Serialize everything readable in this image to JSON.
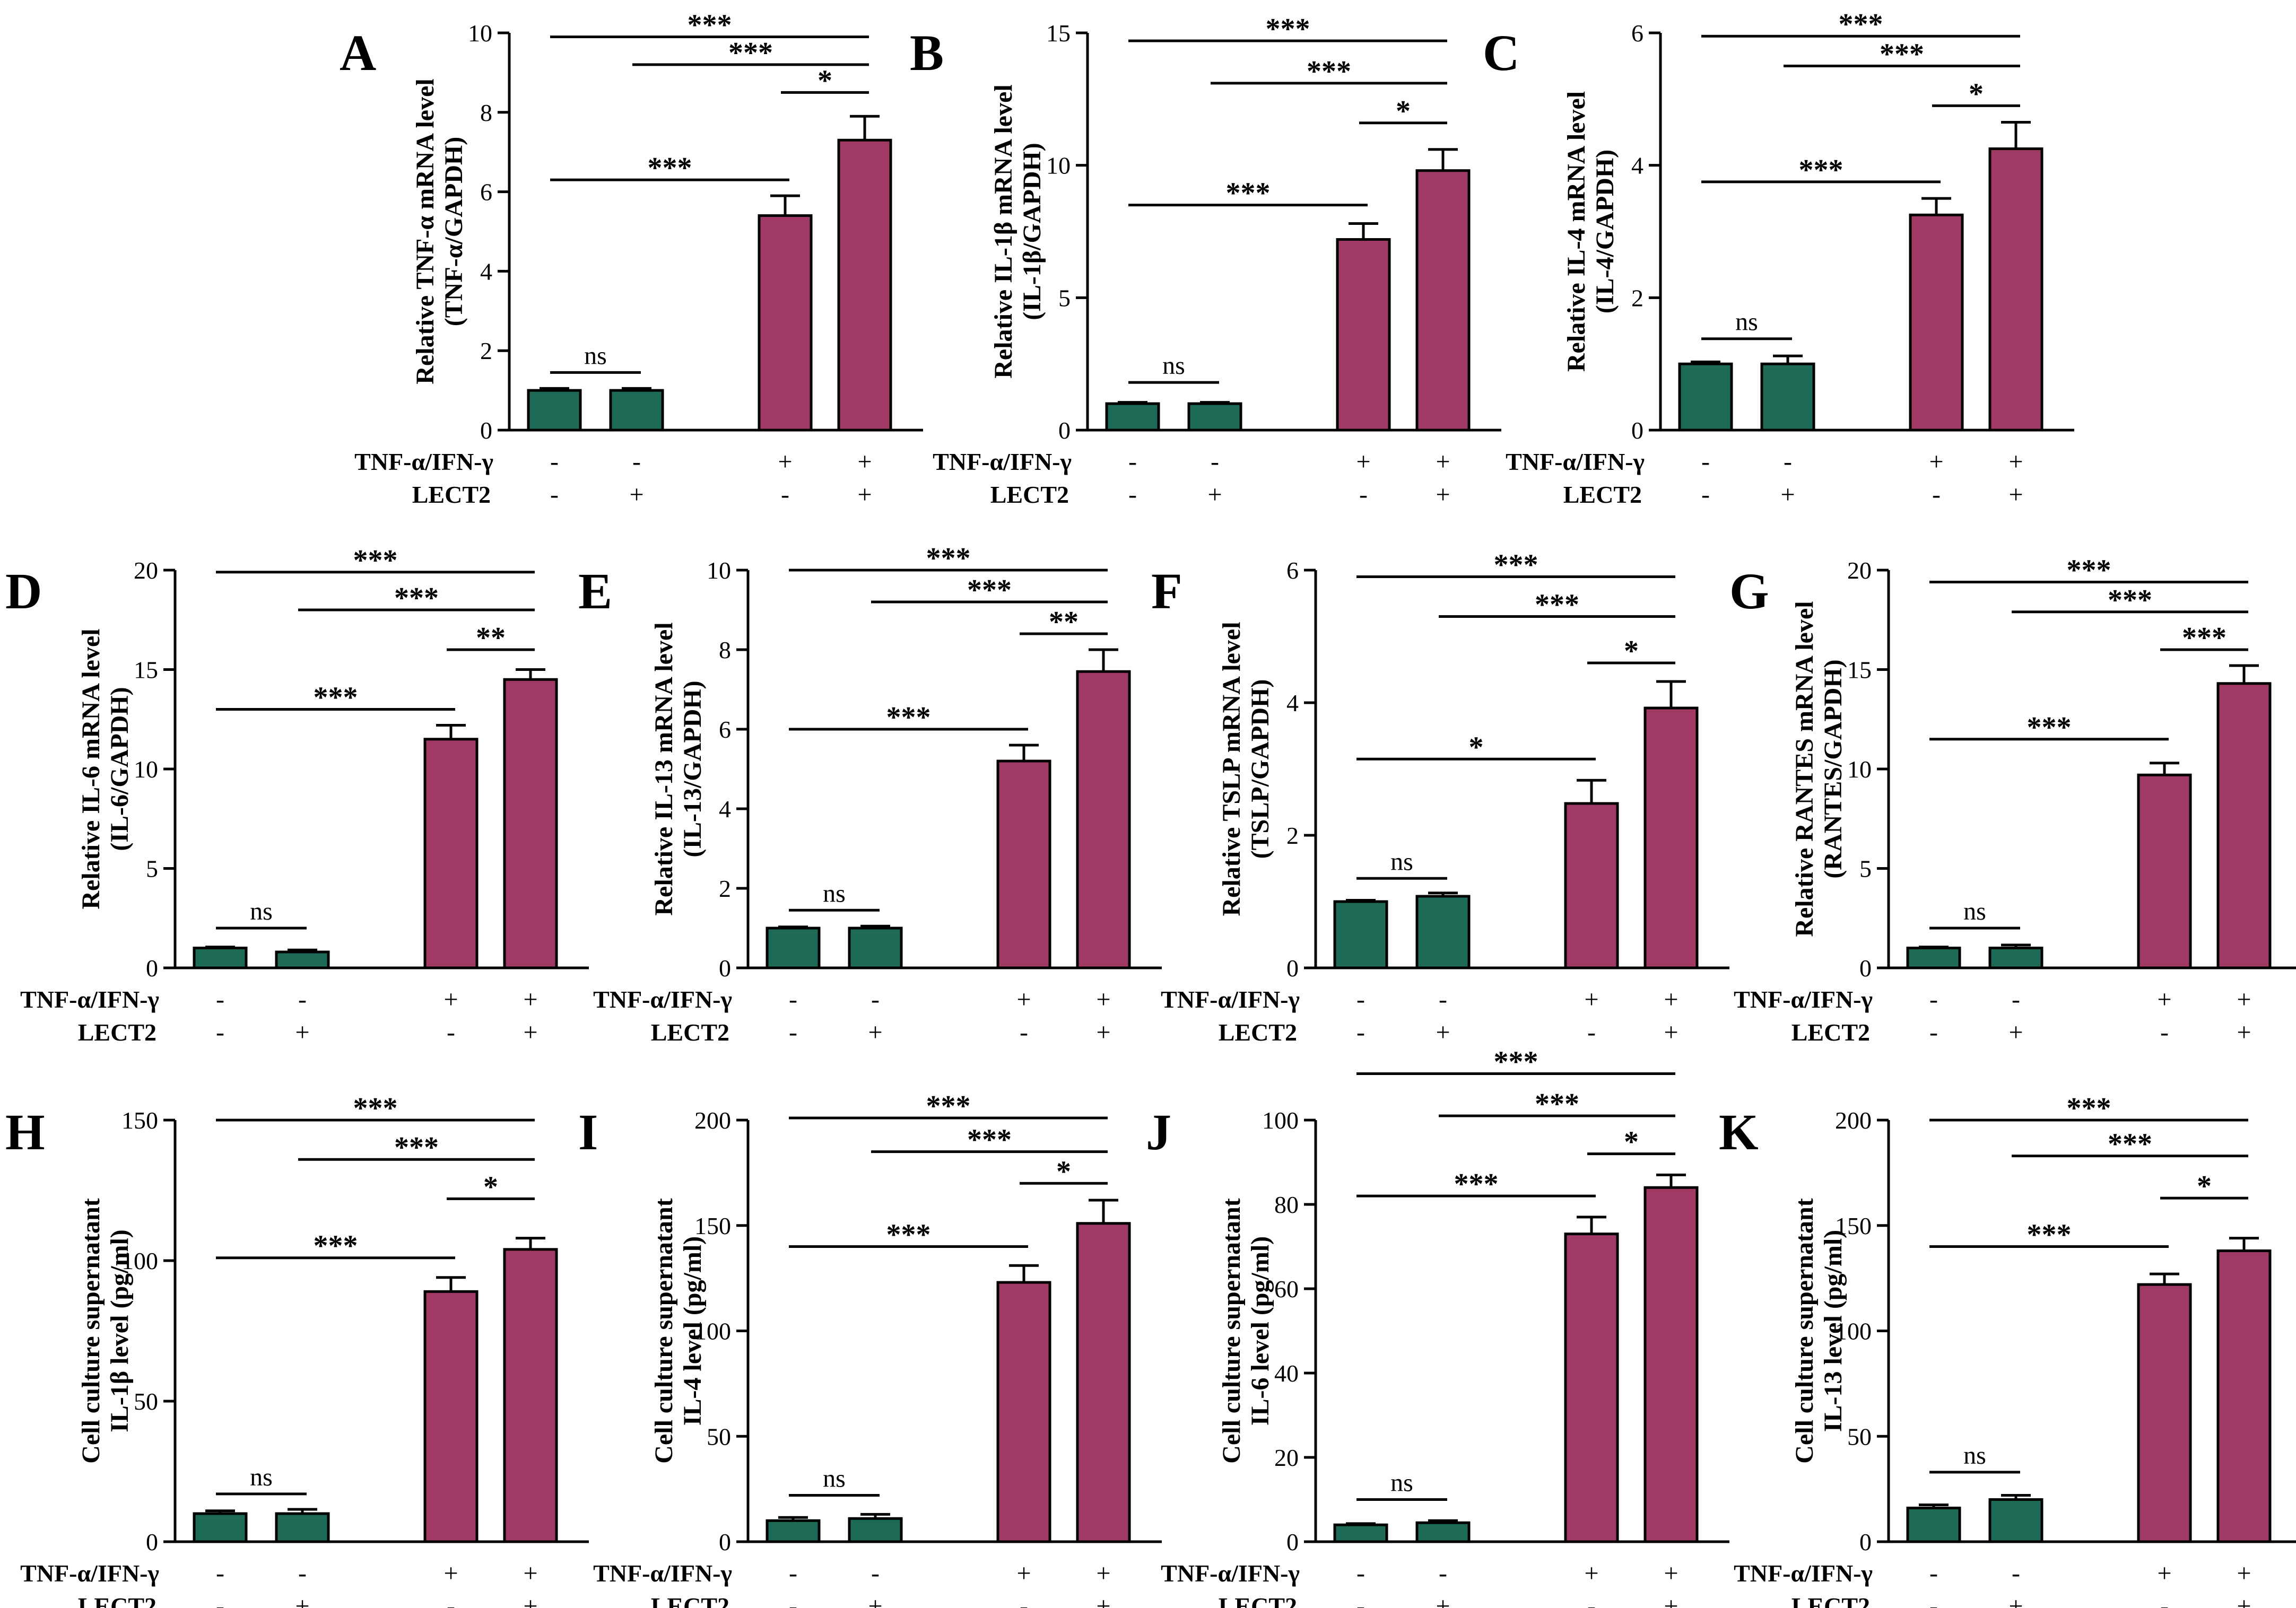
{
  "figure": {
    "colors": {
      "control": "#1d6b57",
      "treated": "#a03a64",
      "axis": "#000000",
      "background": "#ffffff"
    },
    "row_labels": [
      "TNF-α/IFN-γ",
      "LECT2"
    ],
    "conditions": [
      [
        "-",
        "-",
        "+",
        "+"
      ],
      [
        "-",
        "+",
        "-",
        "+"
      ]
    ]
  },
  "chart_data": [
    {
      "panel": "A",
      "type": "bar",
      "ylabel": [
        "Relative TNF-α mRNA level",
        "(TNF-α/GAPDH)"
      ],
      "ylim": [
        0,
        10
      ],
      "yticks": [
        0,
        2,
        4,
        6,
        8,
        10
      ],
      "values": [
        1.0,
        1.0,
        5.4,
        7.3
      ],
      "errors": [
        0.05,
        0.05,
        0.5,
        0.6
      ],
      "significance": [
        {
          "from": 0,
          "to": 1,
          "label": "ns",
          "y": 1.45
        },
        {
          "from": 0,
          "to": 2,
          "label": "***",
          "y": 6.3
        },
        {
          "from": 2,
          "to": 3,
          "label": "*",
          "y": 8.5
        },
        {
          "from": 1,
          "to": 3,
          "label": "***",
          "y": 9.2
        },
        {
          "from": 0,
          "to": 3,
          "label": "***",
          "y": 9.9
        }
      ]
    },
    {
      "panel": "B",
      "type": "bar",
      "ylabel": [
        "Relative IL-1β mRNA level",
        "(IL-1β/GAPDH)"
      ],
      "ylim": [
        0,
        15
      ],
      "yticks": [
        0,
        5,
        10,
        15
      ],
      "values": [
        1.0,
        1.0,
        7.2,
        9.8
      ],
      "errors": [
        0.05,
        0.05,
        0.6,
        0.8
      ],
      "significance": [
        {
          "from": 0,
          "to": 1,
          "label": "ns",
          "y": 1.8
        },
        {
          "from": 0,
          "to": 2,
          "label": "***",
          "y": 8.5
        },
        {
          "from": 2,
          "to": 3,
          "label": "*",
          "y": 11.6
        },
        {
          "from": 1,
          "to": 3,
          "label": "***",
          "y": 13.1
        },
        {
          "from": 0,
          "to": 3,
          "label": "***",
          "y": 14.7
        }
      ]
    },
    {
      "panel": "C",
      "type": "bar",
      "ylabel": [
        "Relative IL-4 mRNA level",
        "(IL-4/GAPDH)"
      ],
      "ylim": [
        0,
        6
      ],
      "yticks": [
        0,
        2,
        4,
        6
      ],
      "values": [
        1.0,
        1.0,
        3.25,
        4.25
      ],
      "errors": [
        0.03,
        0.12,
        0.25,
        0.4
      ],
      "significance": [
        {
          "from": 0,
          "to": 1,
          "label": "ns",
          "y": 1.38
        },
        {
          "from": 0,
          "to": 2,
          "label": "***",
          "y": 3.75
        },
        {
          "from": 2,
          "to": 3,
          "label": "*",
          "y": 4.9
        },
        {
          "from": 1,
          "to": 3,
          "label": "***",
          "y": 5.5
        },
        {
          "from": 0,
          "to": 3,
          "label": "***",
          "y": 5.95
        }
      ]
    },
    {
      "panel": "D",
      "type": "bar",
      "ylabel": [
        "Relative IL-6 mRNA level",
        "(IL-6/GAPDH)"
      ],
      "ylim": [
        0,
        20
      ],
      "yticks": [
        0,
        5,
        10,
        15,
        20
      ],
      "values": [
        1.0,
        0.8,
        11.5,
        14.5
      ],
      "errors": [
        0.05,
        0.1,
        0.7,
        0.5
      ],
      "significance": [
        {
          "from": 0,
          "to": 1,
          "label": "ns",
          "y": 2.0
        },
        {
          "from": 0,
          "to": 2,
          "label": "***",
          "y": 13.0
        },
        {
          "from": 2,
          "to": 3,
          "label": "**",
          "y": 16.0
        },
        {
          "from": 1,
          "to": 3,
          "label": "***",
          "y": 18.0
        },
        {
          "from": 0,
          "to": 3,
          "label": "***",
          "y": 19.9
        }
      ]
    },
    {
      "panel": "E",
      "type": "bar",
      "ylabel": [
        "Relative IL-13 mRNA level",
        "(IL-13/GAPDH)"
      ],
      "ylim": [
        0,
        10
      ],
      "yticks": [
        0,
        2,
        4,
        6,
        8,
        10
      ],
      "values": [
        1.0,
        1.0,
        5.2,
        7.45
      ],
      "errors": [
        0.03,
        0.05,
        0.4,
        0.55
      ],
      "significance": [
        {
          "from": 0,
          "to": 1,
          "label": "ns",
          "y": 1.45
        },
        {
          "from": 0,
          "to": 2,
          "label": "***",
          "y": 6.0
        },
        {
          "from": 2,
          "to": 3,
          "label": "**",
          "y": 8.4
        },
        {
          "from": 1,
          "to": 3,
          "label": "***",
          "y": 9.2
        },
        {
          "from": 0,
          "to": 3,
          "label": "***",
          "y": 10.0
        }
      ]
    },
    {
      "panel": "F",
      "type": "bar",
      "ylabel": [
        "Relative TSLP mRNA level",
        "(TSLP/GAPDH)"
      ],
      "ylim": [
        0,
        6
      ],
      "yticks": [
        0,
        2,
        4,
        6
      ],
      "values": [
        1.0,
        1.08,
        2.48,
        3.92
      ],
      "errors": [
        0.02,
        0.05,
        0.35,
        0.4
      ],
      "significance": [
        {
          "from": 0,
          "to": 1,
          "label": "ns",
          "y": 1.35
        },
        {
          "from": 0,
          "to": 2,
          "label": "*",
          "y": 3.15
        },
        {
          "from": 2,
          "to": 3,
          "label": "*",
          "y": 4.6
        },
        {
          "from": 1,
          "to": 3,
          "label": "***",
          "y": 5.3
        },
        {
          "from": 0,
          "to": 3,
          "label": "***",
          "y": 5.9
        }
      ]
    },
    {
      "panel": "G",
      "type": "bar",
      "ylabel": [
        "Relative RANTES mRNA level",
        "(RANTES/GAPDH)"
      ],
      "ylim": [
        0,
        20
      ],
      "yticks": [
        0,
        5,
        10,
        15,
        20
      ],
      "values": [
        1.0,
        1.0,
        9.7,
        14.3
      ],
      "errors": [
        0.05,
        0.15,
        0.6,
        0.9
      ],
      "significance": [
        {
          "from": 0,
          "to": 1,
          "label": "ns",
          "y": 2.0
        },
        {
          "from": 0,
          "to": 2,
          "label": "***",
          "y": 11.5
        },
        {
          "from": 2,
          "to": 3,
          "label": "***",
          "y": 16.0
        },
        {
          "from": 1,
          "to": 3,
          "label": "***",
          "y": 17.9
        },
        {
          "from": 0,
          "to": 3,
          "label": "***",
          "y": 19.4
        }
      ]
    },
    {
      "panel": "H",
      "type": "bar",
      "ylabel": [
        "Cell culture supernatant",
        "IL-1β level (pg/ml)"
      ],
      "ylim": [
        0,
        150
      ],
      "yticks": [
        0,
        50,
        100,
        150
      ],
      "values": [
        10,
        10,
        89,
        104
      ],
      "errors": [
        1.0,
        1.5,
        5,
        4
      ],
      "significance": [
        {
          "from": 0,
          "to": 1,
          "label": "ns",
          "y": 17
        },
        {
          "from": 0,
          "to": 2,
          "label": "***",
          "y": 101
        },
        {
          "from": 2,
          "to": 3,
          "label": "*",
          "y": 122
        },
        {
          "from": 1,
          "to": 3,
          "label": "***",
          "y": 136
        },
        {
          "from": 0,
          "to": 3,
          "label": "***",
          "y": 150
        }
      ]
    },
    {
      "panel": "I",
      "type": "bar",
      "ylabel": [
        "Cell culture supernatant",
        "IL-4 level (pg/ml)"
      ],
      "ylim": [
        0,
        200
      ],
      "yticks": [
        0,
        50,
        100,
        150,
        200
      ],
      "values": [
        10,
        11,
        123,
        151
      ],
      "errors": [
        1.5,
        2,
        8,
        11
      ],
      "significance": [
        {
          "from": 0,
          "to": 1,
          "label": "ns",
          "y": 22
        },
        {
          "from": 0,
          "to": 2,
          "label": "***",
          "y": 140
        },
        {
          "from": 2,
          "to": 3,
          "label": "*",
          "y": 170
        },
        {
          "from": 1,
          "to": 3,
          "label": "***",
          "y": 185
        },
        {
          "from": 0,
          "to": 3,
          "label": "***",
          "y": 201
        }
      ]
    },
    {
      "panel": "J",
      "type": "bar",
      "ylabel": [
        "Cell culture supernatant",
        "IL-6 level  (pg/ml)"
      ],
      "ylim": [
        0,
        100
      ],
      "yticks": [
        0,
        20,
        40,
        60,
        80,
        100
      ],
      "values": [
        4,
        4.5,
        73,
        84
      ],
      "errors": [
        0.3,
        0.5,
        4,
        3
      ],
      "significance": [
        {
          "from": 0,
          "to": 1,
          "label": "ns",
          "y": 10
        },
        {
          "from": 0,
          "to": 2,
          "label": "***",
          "y": 82
        },
        {
          "from": 2,
          "to": 3,
          "label": "*",
          "y": 92
        },
        {
          "from": 1,
          "to": 3,
          "label": "***",
          "y": 101
        },
        {
          "from": 0,
          "to": 3,
          "label": "***",
          "y": 111
        }
      ]
    },
    {
      "panel": "K",
      "type": "bar",
      "ylabel": [
        "Cell culture supernatant",
        "IL-13 level (pg/ml)"
      ],
      "ylim": [
        0,
        200
      ],
      "yticks": [
        0,
        50,
        100,
        150,
        200
      ],
      "values": [
        16,
        20,
        122,
        138
      ],
      "errors": [
        1.5,
        2,
        5,
        6
      ],
      "significance": [
        {
          "from": 0,
          "to": 1,
          "label": "ns",
          "y": 33
        },
        {
          "from": 0,
          "to": 2,
          "label": "***",
          "y": 140
        },
        {
          "from": 2,
          "to": 3,
          "label": "*",
          "y": 163
        },
        {
          "from": 1,
          "to": 3,
          "label": "***",
          "y": 183
        },
        {
          "from": 0,
          "to": 3,
          "label": "***",
          "y": 200
        }
      ]
    }
  ]
}
